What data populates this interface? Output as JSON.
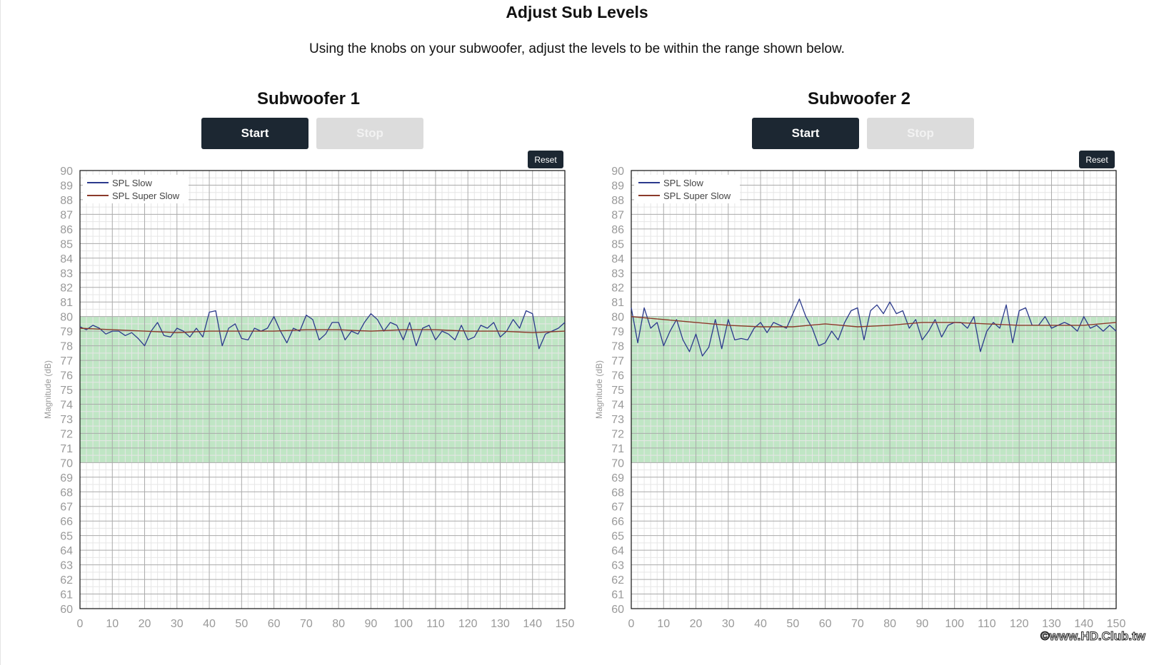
{
  "page": {
    "title": "Adjust Sub Levels",
    "subtitle": "Using the knobs on your subwoofer, adjust the levels to be within the range shown below."
  },
  "subwoofers": [
    {
      "title": "Subwoofer 1",
      "start_label": "Start",
      "stop_label": "Stop",
      "reset_label": "Reset"
    },
    {
      "title": "Subwoofer 2",
      "start_label": "Start",
      "stop_label": "Stop",
      "reset_label": "Reset"
    }
  ],
  "watermark": "©www.HD.Club.tw",
  "colors": {
    "spl_slow": "#2b3a8c",
    "spl_super_slow": "#8b3a2a",
    "target_band": "#a8dcae",
    "button_dark": "#1c2732",
    "button_disabled": "#dcdcdc"
  },
  "chart_data": [
    {
      "type": "line",
      "ylabel": "Magnitude (dB)",
      "xlim": [
        0,
        150
      ],
      "ylim": [
        60,
        90
      ],
      "x_ticks": [
        0,
        10,
        20,
        30,
        40,
        50,
        60,
        70,
        80,
        90,
        100,
        110,
        120,
        130,
        140,
        150
      ],
      "y_ticks": [
        60,
        61,
        62,
        63,
        64,
        65,
        66,
        67,
        68,
        69,
        70,
        71,
        72,
        73,
        74,
        75,
        76,
        77,
        78,
        79,
        80,
        81,
        82,
        83,
        84,
        85,
        86,
        87,
        88,
        89,
        90
      ],
      "target_band": [
        70,
        80
      ],
      "grid": true,
      "legend_position": "top-left",
      "series": [
        {
          "name": "SPL Slow",
          "x": [
            0,
            2,
            4,
            6,
            8,
            10,
            12,
            14,
            16,
            18,
            20,
            22,
            24,
            26,
            28,
            30,
            32,
            34,
            36,
            38,
            40,
            42,
            44,
            46,
            48,
            50,
            52,
            54,
            56,
            58,
            60,
            62,
            64,
            66,
            68,
            70,
            72,
            74,
            76,
            78,
            80,
            82,
            84,
            86,
            88,
            90,
            92,
            94,
            96,
            98,
            100,
            102,
            104,
            106,
            108,
            110,
            112,
            114,
            116,
            118,
            120,
            122,
            124,
            126,
            128,
            130,
            132,
            134,
            136,
            138,
            140,
            142,
            144,
            146,
            148,
            150
          ],
          "y": [
            79.3,
            79.1,
            79.4,
            79.2,
            78.8,
            79.0,
            79.0,
            78.7,
            78.9,
            78.5,
            78.0,
            79.0,
            79.6,
            78.7,
            78.6,
            79.2,
            79.0,
            78.6,
            79.2,
            78.6,
            80.3,
            80.4,
            78.0,
            79.2,
            79.5,
            78.5,
            78.4,
            79.2,
            79.0,
            79.2,
            80.0,
            79.0,
            78.2,
            79.2,
            79.0,
            80.1,
            79.8,
            78.4,
            78.8,
            79.6,
            79.6,
            78.4,
            79.0,
            78.8,
            79.6,
            80.2,
            79.8,
            79.0,
            79.6,
            79.4,
            78.4,
            79.6,
            78.0,
            79.2,
            79.4,
            78.4,
            79.0,
            78.8,
            78.4,
            79.4,
            78.4,
            78.6,
            79.4,
            79.2,
            79.6,
            78.6,
            79.0,
            79.8,
            79.2,
            80.4,
            80.2,
            77.8,
            78.8,
            79.0,
            79.2,
            79.6
          ]
        },
        {
          "name": "SPL Super Slow",
          "x": [
            0,
            10,
            20,
            30,
            40,
            50,
            60,
            70,
            80,
            90,
            100,
            110,
            120,
            130,
            140,
            150
          ],
          "y": [
            79.2,
            79.1,
            79.0,
            78.9,
            79.0,
            79.0,
            79.0,
            79.1,
            79.1,
            79.0,
            79.1,
            79.1,
            79.0,
            79.0,
            78.9,
            79.0
          ]
        }
      ]
    },
    {
      "type": "line",
      "ylabel": "Magnitude (dB)",
      "xlim": [
        0,
        150
      ],
      "ylim": [
        60,
        90
      ],
      "x_ticks": [
        0,
        10,
        20,
        30,
        40,
        50,
        60,
        70,
        80,
        90,
        100,
        110,
        120,
        130,
        140,
        150
      ],
      "y_ticks": [
        60,
        61,
        62,
        63,
        64,
        65,
        66,
        67,
        68,
        69,
        70,
        71,
        72,
        73,
        74,
        75,
        76,
        77,
        78,
        79,
        80,
        81,
        82,
        83,
        84,
        85,
        86,
        87,
        88,
        89,
        90
      ],
      "target_band": [
        70,
        80
      ],
      "grid": true,
      "legend_position": "top-left",
      "series": [
        {
          "name": "SPL Slow",
          "x": [
            0,
            2,
            4,
            6,
            8,
            10,
            12,
            14,
            16,
            18,
            20,
            22,
            24,
            26,
            28,
            30,
            32,
            34,
            36,
            38,
            40,
            42,
            44,
            46,
            48,
            50,
            52,
            54,
            56,
            58,
            60,
            62,
            64,
            66,
            68,
            70,
            72,
            74,
            76,
            78,
            80,
            82,
            84,
            86,
            88,
            90,
            92,
            94,
            96,
            98,
            100,
            102,
            104,
            106,
            108,
            110,
            112,
            114,
            116,
            118,
            120,
            122,
            124,
            126,
            128,
            130,
            132,
            134,
            136,
            138,
            140,
            142,
            144,
            146,
            148,
            150
          ],
          "y": [
            80.6,
            78.2,
            80.6,
            79.2,
            79.6,
            78.0,
            79.0,
            79.8,
            78.4,
            77.6,
            78.8,
            77.3,
            77.9,
            79.8,
            77.8,
            79.8,
            78.4,
            78.5,
            78.4,
            79.2,
            79.6,
            78.9,
            79.6,
            79.4,
            79.2,
            80.2,
            81.2,
            80.0,
            79.2,
            78.0,
            78.2,
            79.0,
            78.4,
            79.6,
            80.4,
            80.6,
            78.4,
            80.4,
            80.8,
            80.2,
            81.0,
            80.2,
            80.4,
            79.2,
            79.8,
            78.4,
            79.0,
            79.8,
            78.6,
            79.4,
            79.6,
            79.6,
            79.2,
            80.0,
            77.6,
            79.0,
            79.6,
            79.2,
            80.8,
            78.2,
            80.4,
            80.6,
            79.4,
            79.4,
            80.0,
            79.2,
            79.4,
            79.6,
            79.4,
            79.0,
            80.0,
            79.2,
            79.4,
            79.0,
            79.4,
            79.0
          ]
        },
        {
          "name": "SPL Super Slow",
          "x": [
            0,
            10,
            20,
            30,
            40,
            50,
            60,
            70,
            80,
            90,
            100,
            110,
            120,
            130,
            140,
            150
          ],
          "y": [
            80.0,
            79.8,
            79.6,
            79.4,
            79.3,
            79.3,
            79.5,
            79.3,
            79.4,
            79.6,
            79.6,
            79.5,
            79.4,
            79.4,
            79.4,
            79.6
          ]
        }
      ]
    }
  ]
}
